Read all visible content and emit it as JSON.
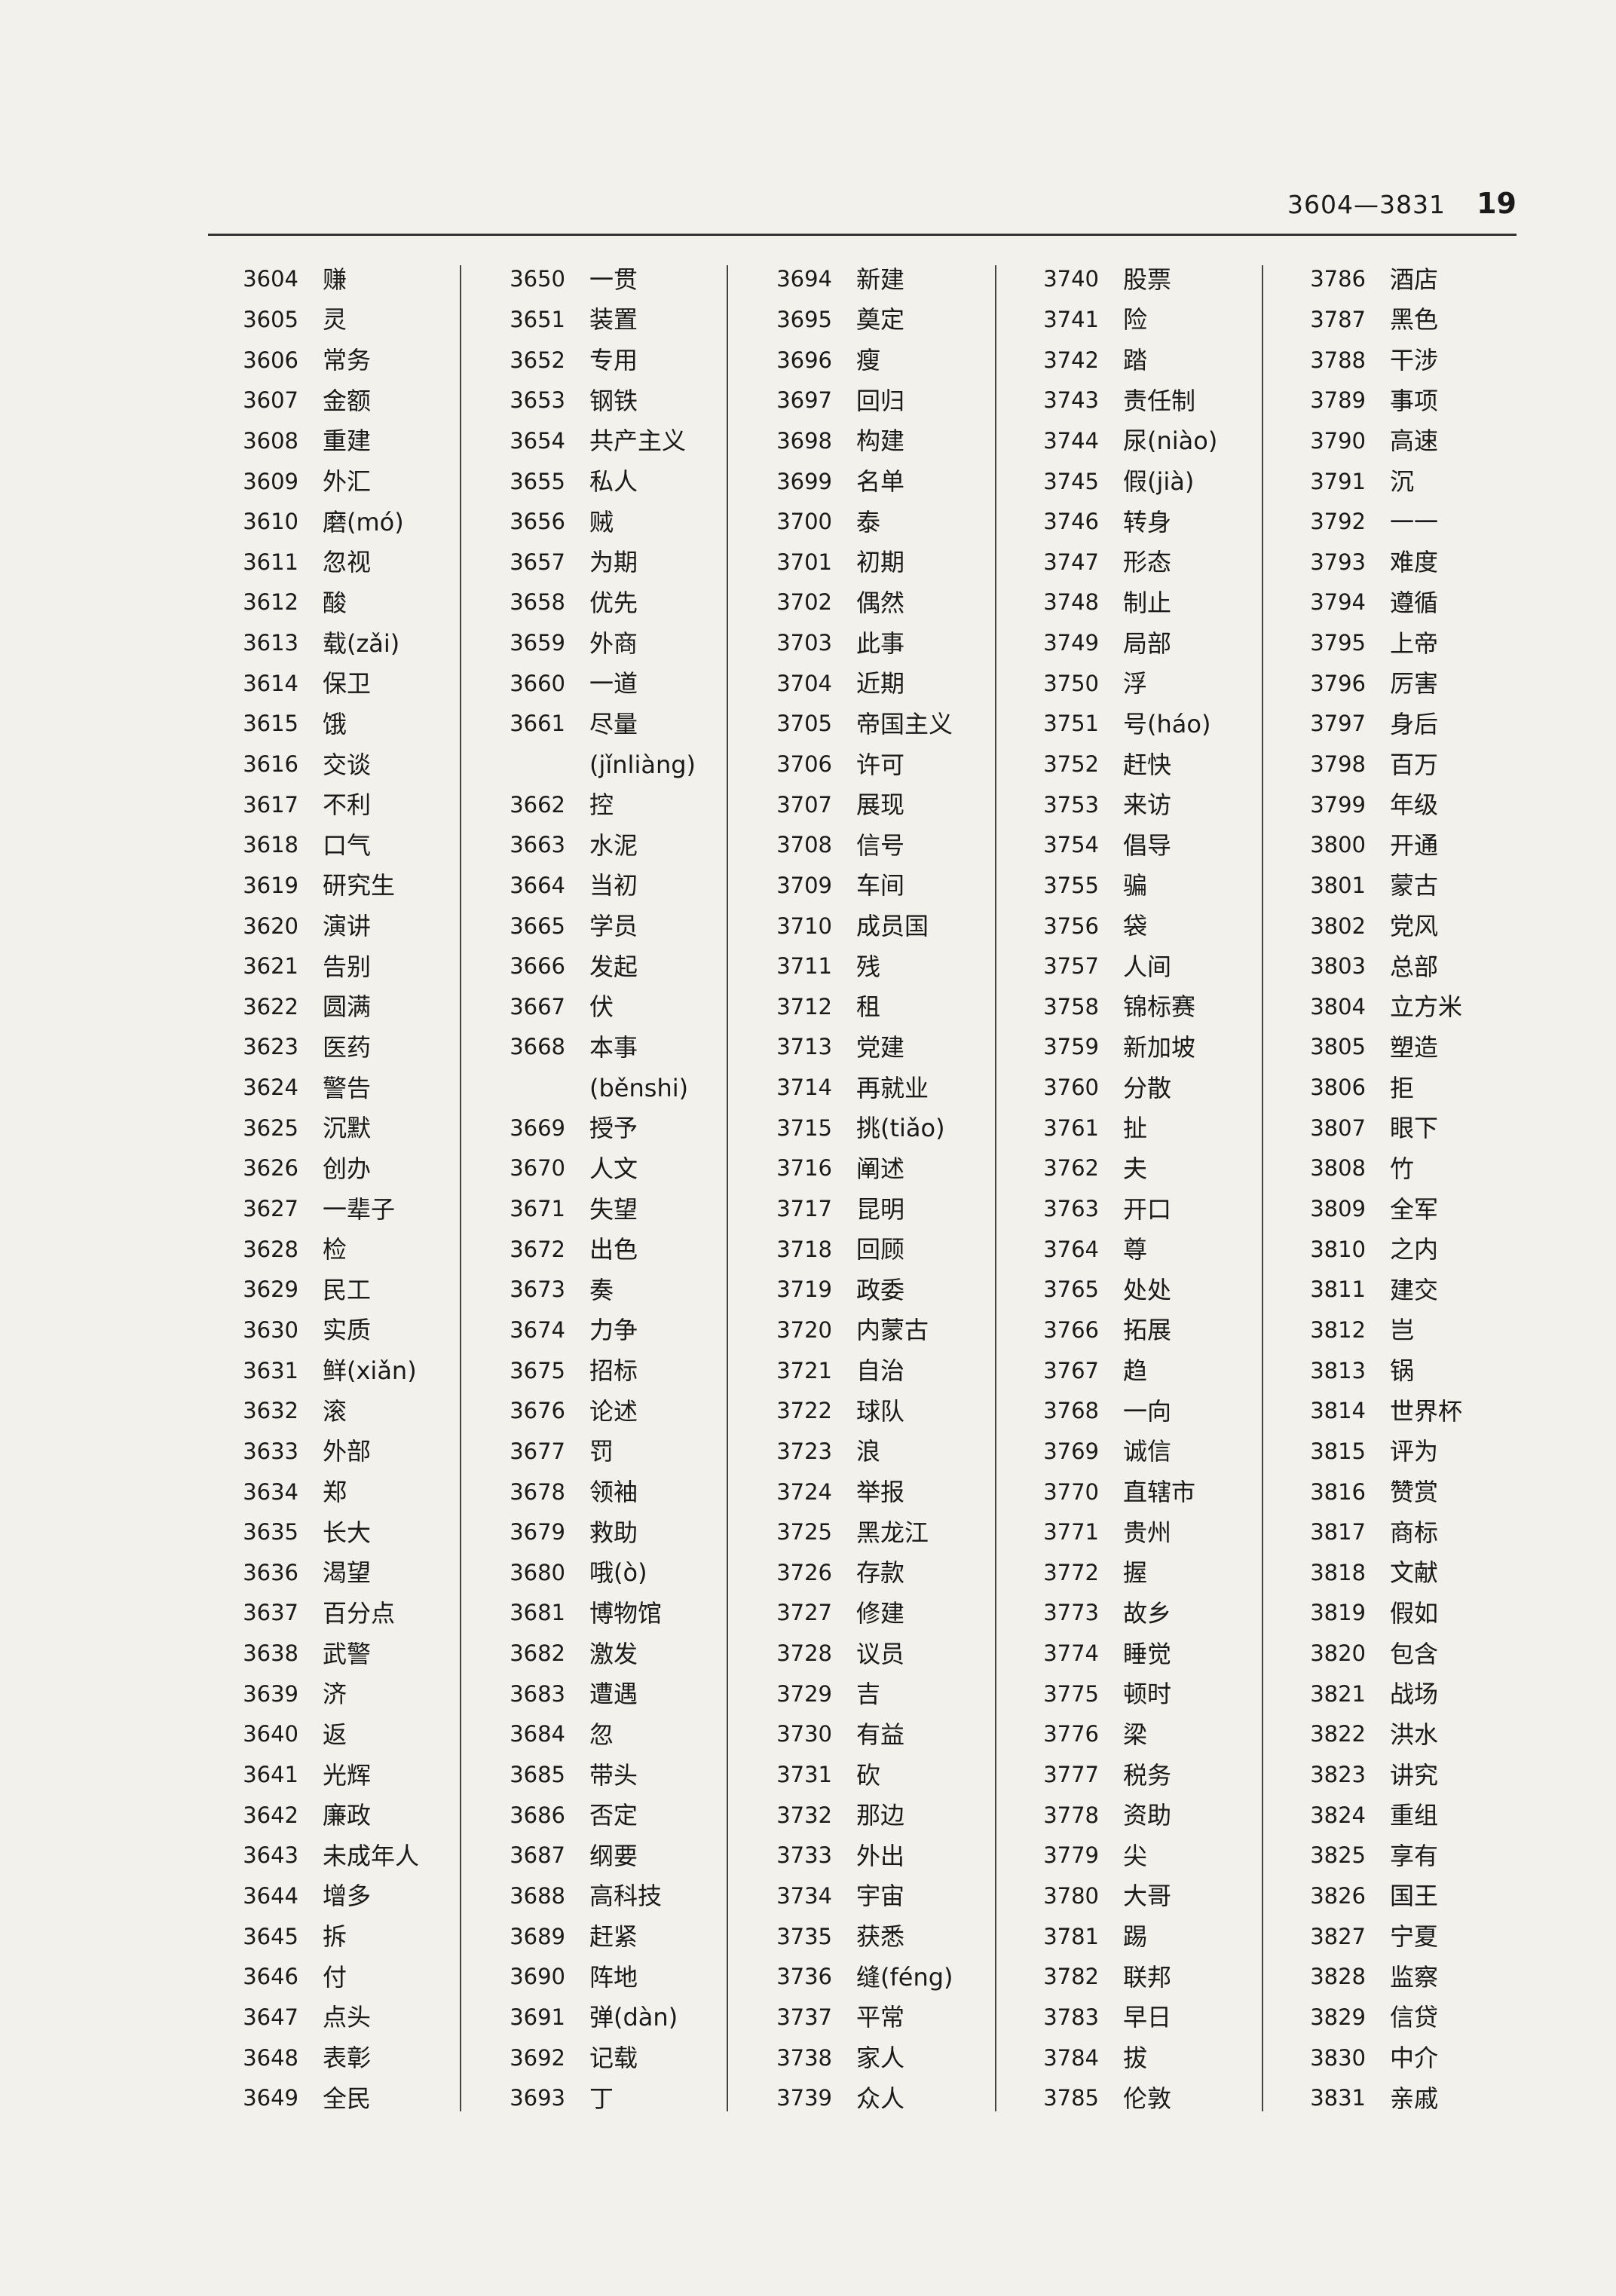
{
  "header": {
    "range": "3604—3831",
    "page": "19"
  },
  "columns": [
    {
      "entries": [
        {
          "num": "3604",
          "word": "赚"
        },
        {
          "num": "3605",
          "word": "灵"
        },
        {
          "num": "3606",
          "word": "常务"
        },
        {
          "num": "3607",
          "word": "金额"
        },
        {
          "num": "3608",
          "word": "重建"
        },
        {
          "num": "3609",
          "word": "外汇"
        },
        {
          "num": "3610",
          "word": "磨(mó)"
        },
        {
          "num": "3611",
          "word": "忽视"
        },
        {
          "num": "3612",
          "word": "酸"
        },
        {
          "num": "3613",
          "word": "载(zǎi)"
        },
        {
          "num": "3614",
          "word": "保卫"
        },
        {
          "num": "3615",
          "word": "饿"
        },
        {
          "num": "3616",
          "word": "交谈"
        },
        {
          "num": "3617",
          "word": "不利"
        },
        {
          "num": "3618",
          "word": "口气"
        },
        {
          "num": "3619",
          "word": "研究生"
        },
        {
          "num": "3620",
          "word": "演讲"
        },
        {
          "num": "3621",
          "word": "告别"
        },
        {
          "num": "3622",
          "word": "圆满"
        },
        {
          "num": "3623",
          "word": "医药"
        },
        {
          "num": "3624",
          "word": "警告"
        },
        {
          "num": "3625",
          "word": "沉默"
        },
        {
          "num": "3626",
          "word": "创办"
        },
        {
          "num": "3627",
          "word": "一辈子"
        },
        {
          "num": "3628",
          "word": "检"
        },
        {
          "num": "3629",
          "word": "民工"
        },
        {
          "num": "3630",
          "word": "实质"
        },
        {
          "num": "3631",
          "word": "鲜(xiǎn)"
        },
        {
          "num": "3632",
          "word": "滚"
        },
        {
          "num": "3633",
          "word": "外部"
        },
        {
          "num": "3634",
          "word": "郑"
        },
        {
          "num": "3635",
          "word": "长大"
        },
        {
          "num": "3636",
          "word": "渴望"
        },
        {
          "num": "3637",
          "word": "百分点"
        },
        {
          "num": "3638",
          "word": "武警"
        },
        {
          "num": "3639",
          "word": "济"
        },
        {
          "num": "3640",
          "word": "返"
        },
        {
          "num": "3641",
          "word": "光辉"
        },
        {
          "num": "3642",
          "word": "廉政"
        },
        {
          "num": "3643",
          "word": "未成年人"
        },
        {
          "num": "3644",
          "word": "增多"
        },
        {
          "num": "3645",
          "word": "拆"
        },
        {
          "num": "3646",
          "word": "付"
        },
        {
          "num": "3647",
          "word": "点头"
        },
        {
          "num": "3648",
          "word": "表彰"
        },
        {
          "num": "3649",
          "word": "全民"
        }
      ]
    },
    {
      "entries": [
        {
          "num": "3650",
          "word": "一贯"
        },
        {
          "num": "3651",
          "word": "装置"
        },
        {
          "num": "3652",
          "word": "专用"
        },
        {
          "num": "3653",
          "word": "钢铁"
        },
        {
          "num": "3654",
          "word": "共产主义"
        },
        {
          "num": "3655",
          "word": "私人"
        },
        {
          "num": "3656",
          "word": "贼"
        },
        {
          "num": "3657",
          "word": "为期"
        },
        {
          "num": "3658",
          "word": "优先"
        },
        {
          "num": "3659",
          "word": "外商"
        },
        {
          "num": "3660",
          "word": "一道"
        },
        {
          "num": "3661",
          "word": "尽量"
        },
        {
          "num": "",
          "word": "(jǐnliàng)"
        },
        {
          "num": "3662",
          "word": "控"
        },
        {
          "num": "3663",
          "word": "水泥"
        },
        {
          "num": "3664",
          "word": "当初"
        },
        {
          "num": "3665",
          "word": "学员"
        },
        {
          "num": "3666",
          "word": "发起"
        },
        {
          "num": "3667",
          "word": "伏"
        },
        {
          "num": "3668",
          "word": "本事"
        },
        {
          "num": "",
          "word": "(běnshi)"
        },
        {
          "num": "3669",
          "word": "授予"
        },
        {
          "num": "3670",
          "word": "人文"
        },
        {
          "num": "3671",
          "word": "失望"
        },
        {
          "num": "3672",
          "word": "出色"
        },
        {
          "num": "3673",
          "word": "奏"
        },
        {
          "num": "3674",
          "word": "力争"
        },
        {
          "num": "3675",
          "word": "招标"
        },
        {
          "num": "3676",
          "word": "论述"
        },
        {
          "num": "3677",
          "word": "罚"
        },
        {
          "num": "3678",
          "word": "领袖"
        },
        {
          "num": "3679",
          "word": "救助"
        },
        {
          "num": "3680",
          "word": "哦(ò)"
        },
        {
          "num": "3681",
          "word": "博物馆"
        },
        {
          "num": "3682",
          "word": "激发"
        },
        {
          "num": "3683",
          "word": "遭遇"
        },
        {
          "num": "3684",
          "word": "忽"
        },
        {
          "num": "3685",
          "word": "带头"
        },
        {
          "num": "3686",
          "word": "否定"
        },
        {
          "num": "3687",
          "word": "纲要"
        },
        {
          "num": "3688",
          "word": "高科技"
        },
        {
          "num": "3689",
          "word": "赶紧"
        },
        {
          "num": "3690",
          "word": "阵地"
        },
        {
          "num": "3691",
          "word": "弹(dàn)"
        },
        {
          "num": "3692",
          "word": "记载"
        },
        {
          "num": "3693",
          "word": "丁"
        }
      ]
    },
    {
      "entries": [
        {
          "num": "3694",
          "word": "新建"
        },
        {
          "num": "3695",
          "word": "奠定"
        },
        {
          "num": "3696",
          "word": "瘦"
        },
        {
          "num": "3697",
          "word": "回归"
        },
        {
          "num": "3698",
          "word": "构建"
        },
        {
          "num": "3699",
          "word": "名单"
        },
        {
          "num": "3700",
          "word": "泰"
        },
        {
          "num": "3701",
          "word": "初期"
        },
        {
          "num": "3702",
          "word": "偶然"
        },
        {
          "num": "3703",
          "word": "此事"
        },
        {
          "num": "3704",
          "word": "近期"
        },
        {
          "num": "3705",
          "word": "帝国主义"
        },
        {
          "num": "3706",
          "word": "许可"
        },
        {
          "num": "3707",
          "word": "展现"
        },
        {
          "num": "3708",
          "word": "信号"
        },
        {
          "num": "3709",
          "word": "车间"
        },
        {
          "num": "3710",
          "word": "成员国"
        },
        {
          "num": "3711",
          "word": "残"
        },
        {
          "num": "3712",
          "word": "租"
        },
        {
          "num": "3713",
          "word": "党建"
        },
        {
          "num": "3714",
          "word": "再就业"
        },
        {
          "num": "3715",
          "word": "挑(tiǎo)"
        },
        {
          "num": "3716",
          "word": "阐述"
        },
        {
          "num": "3717",
          "word": "昆明"
        },
        {
          "num": "3718",
          "word": "回顾"
        },
        {
          "num": "3719",
          "word": "政委"
        },
        {
          "num": "3720",
          "word": "内蒙古"
        },
        {
          "num": "3721",
          "word": "自治"
        },
        {
          "num": "3722",
          "word": "球队"
        },
        {
          "num": "3723",
          "word": "浪"
        },
        {
          "num": "3724",
          "word": "举报"
        },
        {
          "num": "3725",
          "word": "黑龙江"
        },
        {
          "num": "3726",
          "word": "存款"
        },
        {
          "num": "3727",
          "word": "修建"
        },
        {
          "num": "3728",
          "word": "议员"
        },
        {
          "num": "3729",
          "word": "吉"
        },
        {
          "num": "3730",
          "word": "有益"
        },
        {
          "num": "3731",
          "word": "砍"
        },
        {
          "num": "3732",
          "word": "那边"
        },
        {
          "num": "3733",
          "word": "外出"
        },
        {
          "num": "3734",
          "word": "宇宙"
        },
        {
          "num": "3735",
          "word": "获悉"
        },
        {
          "num": "3736",
          "word": "缝(féng)"
        },
        {
          "num": "3737",
          "word": "平常"
        },
        {
          "num": "3738",
          "word": "家人"
        },
        {
          "num": "3739",
          "word": "众人"
        }
      ]
    },
    {
      "entries": [
        {
          "num": "3740",
          "word": "股票"
        },
        {
          "num": "3741",
          "word": "险"
        },
        {
          "num": "3742",
          "word": "踏"
        },
        {
          "num": "3743",
          "word": "责任制"
        },
        {
          "num": "3744",
          "word": "尿(niào)"
        },
        {
          "num": "3745",
          "word": "假(jià)"
        },
        {
          "num": "3746",
          "word": "转身"
        },
        {
          "num": "3747",
          "word": "形态"
        },
        {
          "num": "3748",
          "word": "制止"
        },
        {
          "num": "3749",
          "word": "局部"
        },
        {
          "num": "3750",
          "word": "浮"
        },
        {
          "num": "3751",
          "word": "号(háo)"
        },
        {
          "num": "3752",
          "word": "赶快"
        },
        {
          "num": "3753",
          "word": "来访"
        },
        {
          "num": "3754",
          "word": "倡导"
        },
        {
          "num": "3755",
          "word": "骗"
        },
        {
          "num": "3756",
          "word": "袋"
        },
        {
          "num": "3757",
          "word": "人间"
        },
        {
          "num": "3758",
          "word": "锦标赛"
        },
        {
          "num": "3759",
          "word": "新加坡"
        },
        {
          "num": "3760",
          "word": "分散"
        },
        {
          "num": "3761",
          "word": "扯"
        },
        {
          "num": "3762",
          "word": "夫"
        },
        {
          "num": "3763",
          "word": "开口"
        },
        {
          "num": "3764",
          "word": "尊"
        },
        {
          "num": "3765",
          "word": "处处"
        },
        {
          "num": "3766",
          "word": "拓展"
        },
        {
          "num": "3767",
          "word": "趋"
        },
        {
          "num": "3768",
          "word": "一向"
        },
        {
          "num": "3769",
          "word": "诚信"
        },
        {
          "num": "3770",
          "word": "直辖市"
        },
        {
          "num": "3771",
          "word": "贵州"
        },
        {
          "num": "3772",
          "word": "握"
        },
        {
          "num": "3773",
          "word": "故乡"
        },
        {
          "num": "3774",
          "word": "睡觉"
        },
        {
          "num": "3775",
          "word": "顿时"
        },
        {
          "num": "3776",
          "word": "梁"
        },
        {
          "num": "3777",
          "word": "税务"
        },
        {
          "num": "3778",
          "word": "资助"
        },
        {
          "num": "3779",
          "word": "尖"
        },
        {
          "num": "3780",
          "word": "大哥"
        },
        {
          "num": "3781",
          "word": "踢"
        },
        {
          "num": "3782",
          "word": "联邦"
        },
        {
          "num": "3783",
          "word": "早日"
        },
        {
          "num": "3784",
          "word": "拔"
        },
        {
          "num": "3785",
          "word": "伦敦"
        }
      ]
    },
    {
      "entries": [
        {
          "num": "3786",
          "word": "酒店"
        },
        {
          "num": "3787",
          "word": "黑色"
        },
        {
          "num": "3788",
          "word": "干涉"
        },
        {
          "num": "3789",
          "word": "事项"
        },
        {
          "num": "3790",
          "word": "高速"
        },
        {
          "num": "3791",
          "word": "沉"
        },
        {
          "num": "3792",
          "word": "一一"
        },
        {
          "num": "3793",
          "word": "难度"
        },
        {
          "num": "3794",
          "word": "遵循"
        },
        {
          "num": "3795",
          "word": "上帝"
        },
        {
          "num": "3796",
          "word": "厉害"
        },
        {
          "num": "3797",
          "word": "身后"
        },
        {
          "num": "3798",
          "word": "百万"
        },
        {
          "num": "3799",
          "word": "年级"
        },
        {
          "num": "3800",
          "word": "开通"
        },
        {
          "num": "3801",
          "word": "蒙古"
        },
        {
          "num": "3802",
          "word": "党风"
        },
        {
          "num": "3803",
          "word": "总部"
        },
        {
          "num": "3804",
          "word": "立方米"
        },
        {
          "num": "3805",
          "word": "塑造"
        },
        {
          "num": "3806",
          "word": "拒"
        },
        {
          "num": "3807",
          "word": "眼下"
        },
        {
          "num": "3808",
          "word": "竹"
        },
        {
          "num": "3809",
          "word": "全军"
        },
        {
          "num": "3810",
          "word": "之内"
        },
        {
          "num": "3811",
          "word": "建交"
        },
        {
          "num": "3812",
          "word": "岂"
        },
        {
          "num": "3813",
          "word": "锅"
        },
        {
          "num": "3814",
          "word": "世界杯"
        },
        {
          "num": "3815",
          "word": "评为"
        },
        {
          "num": "3816",
          "word": "赞赏"
        },
        {
          "num": "3817",
          "word": "商标"
        },
        {
          "num": "3818",
          "word": "文献"
        },
        {
          "num": "3819",
          "word": "假如"
        },
        {
          "num": "3820",
          "word": "包含"
        },
        {
          "num": "3821",
          "word": "战场"
        },
        {
          "num": "3822",
          "word": "洪水"
        },
        {
          "num": "3823",
          "word": "讲究"
        },
        {
          "num": "3824",
          "word": "重组"
        },
        {
          "num": "3825",
          "word": "享有"
        },
        {
          "num": "3826",
          "word": "国王"
        },
        {
          "num": "3827",
          "word": "宁夏"
        },
        {
          "num": "3828",
          "word": "监察"
        },
        {
          "num": "3829",
          "word": "信贷"
        },
        {
          "num": "3830",
          "word": "中介"
        },
        {
          "num": "3831",
          "word": "亲戚"
        }
      ]
    }
  ]
}
